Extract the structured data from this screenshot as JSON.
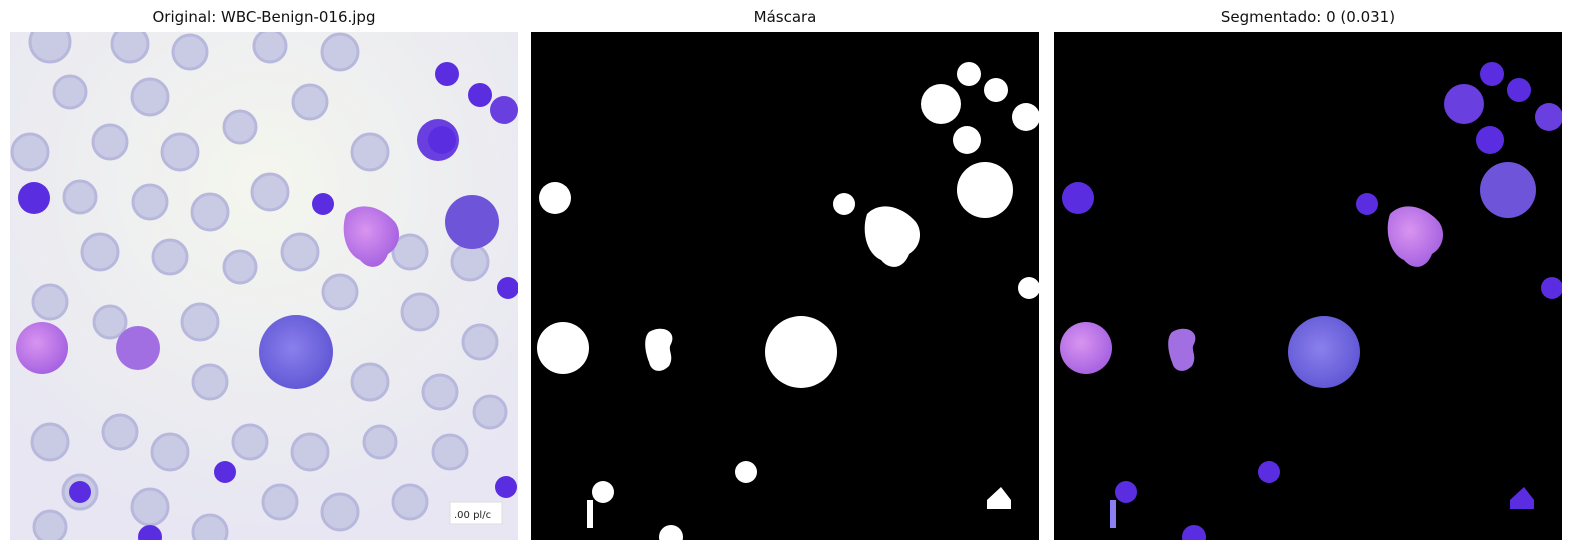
{
  "panels": [
    {
      "id": "original",
      "title": "Original: WBC-Benign-016.jpg"
    },
    {
      "id": "mask",
      "title": "Máscara"
    },
    {
      "id": "segmented",
      "title": "Segmentado: 0 (0.031)"
    }
  ],
  "image_label": ".00 pl/c",
  "colors": {
    "background_light": "#eef0f2",
    "rbc": "#c8c9e3",
    "lymphocyte": "#5a2ee0",
    "monocyte": "#7e6bea",
    "eosinophil": "#c980ea",
    "mask_fg": "#ffffff",
    "mask_bg": "#000000"
  }
}
